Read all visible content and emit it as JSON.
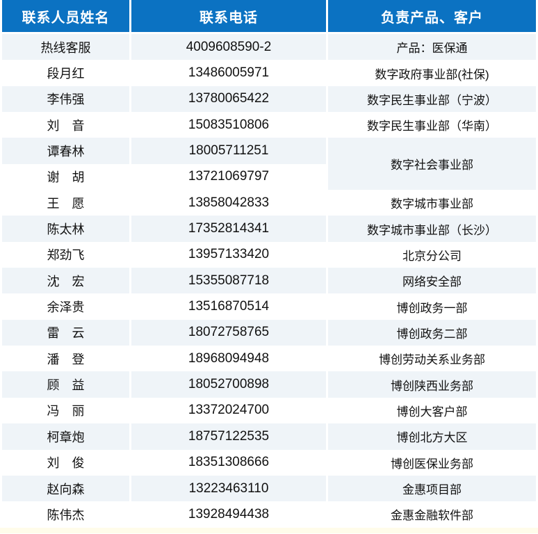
{
  "colors": {
    "header_bg": "#0B72C2",
    "header_text": "#FFFFFF",
    "row_shade": "#EFF4F8",
    "row_white": "#FFFFFF",
    "body_text": "#111111",
    "bottom_strip": "#FFFCEA"
  },
  "table": {
    "headers": {
      "name": "联系人员姓名",
      "phone": "联系电话",
      "dept": "负责产品、客户"
    },
    "rows": [
      {
        "name": "热线客服",
        "phone": "4009608590-2",
        "dept": "产品：医保通",
        "dept_rowspan": 1,
        "shade": true
      },
      {
        "name": "段月红",
        "phone": "13486005971",
        "dept": "数字政府事业部(社保)",
        "dept_rowspan": 1,
        "shade": false
      },
      {
        "name": "李伟强",
        "phone": "13780065422",
        "dept": "数字民生事业部（宁波）",
        "dept_rowspan": 1,
        "shade": true
      },
      {
        "name": "刘　音",
        "phone": "15083510806",
        "dept": "数字民生事业部（华南）",
        "dept_rowspan": 1,
        "shade": false
      },
      {
        "name": "谭春林",
        "phone": "18005711251",
        "dept": "数字社会事业部",
        "dept_rowspan": 2,
        "shade": true
      },
      {
        "name": "谢　胡",
        "phone": "13721069797",
        "dept": null,
        "dept_rowspan": 0,
        "shade": false
      },
      {
        "name": "王　愿",
        "phone": "13858042833",
        "dept": "数字城市事业部",
        "dept_rowspan": 1,
        "shade": false
      },
      {
        "name": "陈太林",
        "phone": "17352814341",
        "dept": "数字城市事业部（长沙）",
        "dept_rowspan": 1,
        "shade": true
      },
      {
        "name": "郑劲飞",
        "phone": "13957133420",
        "dept": "北京分公司",
        "dept_rowspan": 1,
        "shade": false
      },
      {
        "name": "沈　宏",
        "phone": "15355087718",
        "dept": "网络安全部",
        "dept_rowspan": 1,
        "shade": true
      },
      {
        "name": "余泽贵",
        "phone": "13516870514",
        "dept": "博创政务一部",
        "dept_rowspan": 1,
        "shade": false
      },
      {
        "name": "雷　云",
        "phone": "18072758765",
        "dept": "博创政务二部",
        "dept_rowspan": 1,
        "shade": true
      },
      {
        "name": "潘　登",
        "phone": "18968094948",
        "dept": "博创劳动关系业务部",
        "dept_rowspan": 1,
        "shade": false
      },
      {
        "name": "顾　益",
        "phone": "18052700898",
        "dept": "博创陕西业务部",
        "dept_rowspan": 1,
        "shade": true
      },
      {
        "name": "冯　丽",
        "phone": "13372024700",
        "dept": "博创大客户部",
        "dept_rowspan": 1,
        "shade": false
      },
      {
        "name": "柯章炮",
        "phone": "18757122535",
        "dept": "博创北方大区",
        "dept_rowspan": 1,
        "shade": true
      },
      {
        "name": "刘　俊",
        "phone": "18351308666",
        "dept": "博创医保业务部",
        "dept_rowspan": 1,
        "shade": false
      },
      {
        "name": "赵向森",
        "phone": "13223463110",
        "dept": "金惠项目部",
        "dept_rowspan": 1,
        "shade": true
      },
      {
        "name": "陈伟杰",
        "phone": "13928494438",
        "dept": "金惠金融软件部",
        "dept_rowspan": 1,
        "shade": false
      }
    ]
  }
}
